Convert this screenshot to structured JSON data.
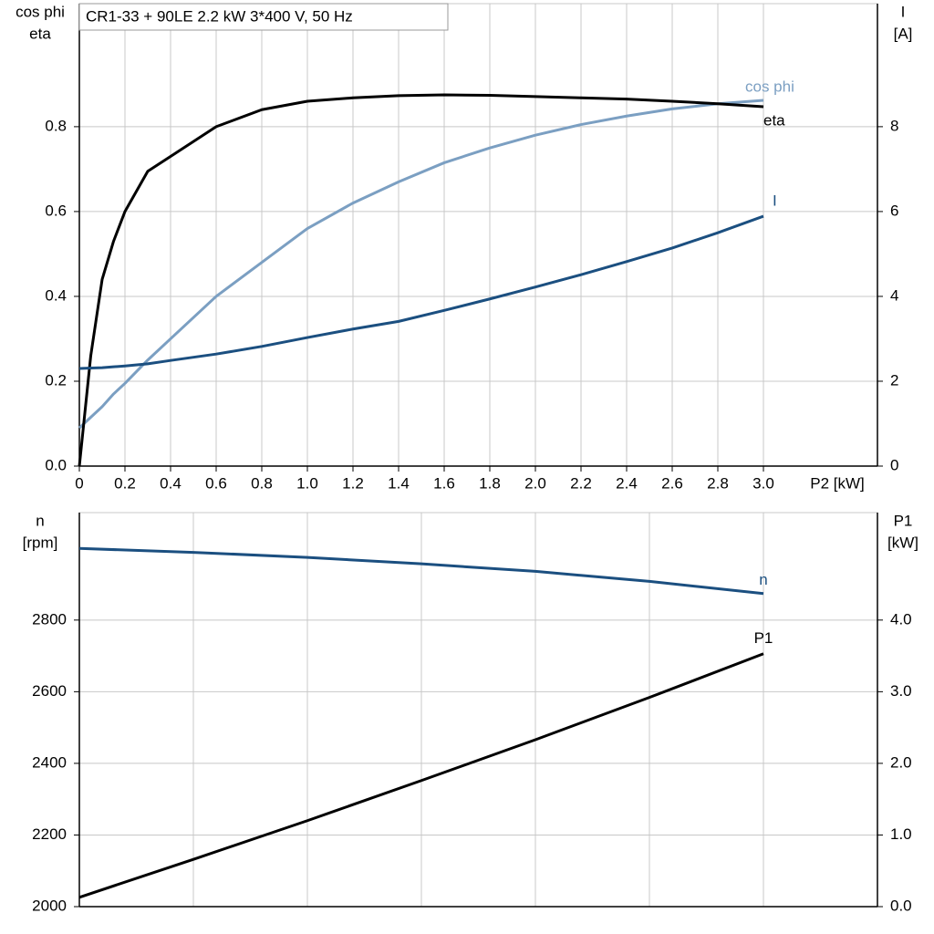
{
  "chart_data": [
    {
      "type": "line",
      "title": "CR1-33 + 90LE   2.2 kW   3*400 V, 50 Hz",
      "xlabel": "P2 [kW]",
      "ylabel": [
        "cos phi",
        "eta"
      ],
      "y2label": [
        "I",
        "[A]"
      ],
      "x": [
        0,
        0.05,
        0.1,
        0.15,
        0.2,
        0.3,
        0.4,
        0.6,
        0.8,
        1.0,
        1.2,
        1.4,
        1.6,
        1.8,
        2.0,
        2.2,
        2.4,
        2.6,
        2.8,
        3.0
      ],
      "xlim": [
        0,
        3.5
      ],
      "xticks": [
        0,
        0.2,
        0.4,
        0.6,
        0.8,
        {
          "value": 1,
          "label": "1.0"
        },
        1.2,
        1.4,
        1.6,
        1.8,
        {
          "value": 2,
          "label": "2.0"
        },
        2.2,
        2.4,
        2.6,
        2.8,
        {
          "value": 3,
          "label": "3.0"
        }
      ],
      "ylim": [
        0,
        1.09
      ],
      "yticks": [
        {
          "value": 0,
          "label": "0.0"
        },
        0.2,
        0.4,
        0.6,
        0.8
      ],
      "y2lim": [
        0,
        10.9
      ],
      "y2ticks": [
        0,
        2,
        4,
        6,
        8
      ],
      "grid": true,
      "series": [
        {
          "name": "cos phi",
          "color": "#7b9fc2",
          "axis": "y",
          "values": [
            0.09,
            0.115,
            0.14,
            0.17,
            0.195,
            0.25,
            0.3,
            0.4,
            0.48,
            0.56,
            0.62,
            0.67,
            0.715,
            0.75,
            0.78,
            0.805,
            0.825,
            0.842,
            0.854,
            0.862
          ]
        },
        {
          "name": "eta",
          "color": "#000000",
          "axis": "y",
          "values": [
            0,
            0.26,
            0.44,
            0.53,
            0.6,
            0.695,
            0.73,
            0.8,
            0.84,
            0.86,
            0.868,
            0.873,
            0.875,
            0.874,
            0.871,
            0.868,
            0.865,
            0.86,
            0.854,
            0.847
          ]
        },
        {
          "name": "I",
          "color": "#1b4f80",
          "axis": "y2",
          "values": [
            2.3,
            2.31,
            2.32,
            2.34,
            2.36,
            2.41,
            2.49,
            2.64,
            2.82,
            3.03,
            3.23,
            3.41,
            3.67,
            3.94,
            4.22,
            4.51,
            4.82,
            5.14,
            5.5,
            5.89
          ]
        }
      ]
    },
    {
      "type": "line",
      "ylabel": [
        "n",
        "[rpm]"
      ],
      "y2label": [
        "P1",
        "[kW]"
      ],
      "x": [
        0,
        0.5,
        1.0,
        1.5,
        2.0,
        2.5,
        3.0
      ],
      "xlim": [
        0,
        3.5
      ],
      "xticks": [
        0,
        0.5,
        1,
        1.5,
        2,
        2.5,
        3,
        3.5
      ],
      "xtick_labels": false,
      "ylim": [
        2000,
        3100
      ],
      "yticks": [
        2000,
        2200,
        2400,
        2600,
        2800
      ],
      "y2lim": [
        0,
        5.5
      ],
      "y2ticks": [
        {
          "value": 0,
          "label": "0.0"
        },
        {
          "value": 1,
          "label": "1.0"
        },
        {
          "value": 2,
          "label": "2.0"
        },
        {
          "value": 3,
          "label": "3.0"
        },
        {
          "value": 4,
          "label": "4.0"
        }
      ],
      "grid": true,
      "series": [
        {
          "name": "n",
          "color": "#1b4f80",
          "axis": "y",
          "values": [
            3000,
            2989,
            2975,
            2957,
            2936,
            2908,
            2874
          ]
        },
        {
          "name": "P1",
          "color": "#000000",
          "axis": "y2",
          "values": [
            0.13,
            0.66,
            1.2,
            1.76,
            2.33,
            2.92,
            3.53
          ]
        }
      ]
    }
  ]
}
